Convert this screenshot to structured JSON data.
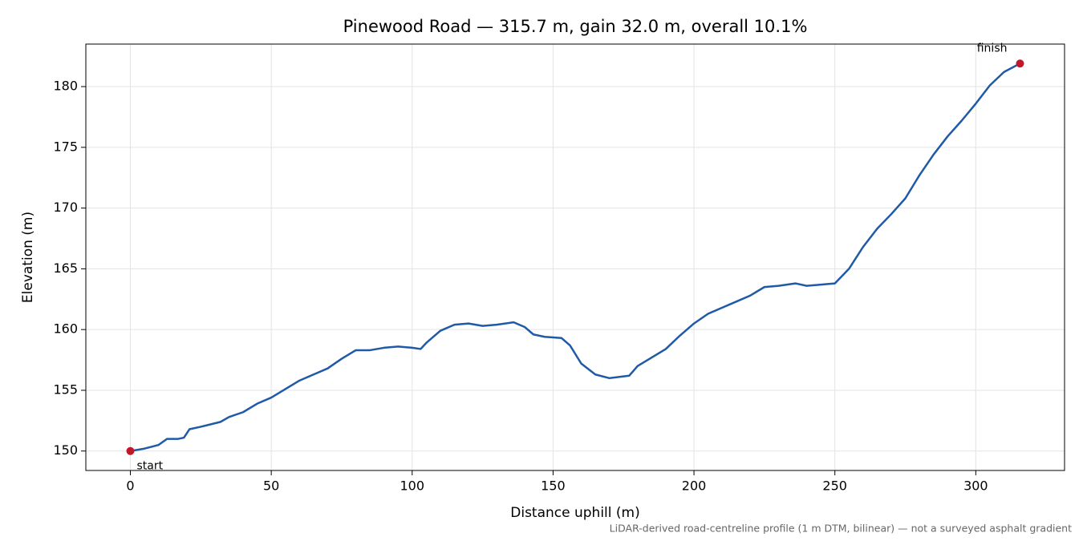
{
  "chart_data": {
    "type": "line",
    "title": "Pinewood Road — 315.7 m, gain 32.0 m, overall 10.1%",
    "x_label": "Distance uphill (m)",
    "y_label": "Elevation (m)",
    "note": "LiDAR-derived road-centreline profile (1 m DTM, bilinear) — not a surveyed asphalt gradient",
    "color": "#1f5aa8",
    "x": [
      0,
      5,
      10,
      13,
      17,
      19,
      21,
      25,
      32,
      35,
      40,
      45,
      50,
      55,
      60,
      65,
      70,
      75,
      80,
      85,
      90,
      95,
      100,
      103,
      105,
      110,
      115,
      120,
      125,
      130,
      136,
      140,
      143,
      147,
      153,
      156,
      160,
      165,
      170,
      177,
      180,
      185,
      190,
      195,
      200,
      205,
      210,
      215,
      220,
      225,
      230,
      236,
      240,
      245,
      250,
      255,
      260,
      265,
      270,
      275,
      280,
      285,
      290,
      295,
      300,
      305,
      310,
      315.7
    ],
    "values": [
      150.0,
      150.2,
      150.5,
      151.0,
      151.0,
      151.1,
      151.8,
      152.0,
      152.4,
      152.8,
      153.2,
      153.9,
      154.4,
      155.1,
      155.8,
      156.3,
      156.8,
      157.6,
      158.3,
      158.3,
      158.5,
      158.6,
      158.5,
      158.4,
      158.9,
      159.9,
      160.4,
      160.5,
      160.3,
      160.4,
      160.6,
      160.2,
      159.6,
      159.4,
      159.3,
      158.7,
      157.2,
      156.3,
      156.0,
      156.2,
      157.0,
      157.7,
      158.4,
      159.5,
      160.5,
      161.3,
      161.8,
      162.3,
      162.8,
      163.5,
      163.6,
      163.8,
      163.6,
      163.7,
      163.8,
      165.0,
      166.8,
      168.3,
      169.5,
      170.8,
      172.7,
      174.4,
      175.9,
      177.2,
      178.6,
      180.1,
      181.2,
      181.9
    ],
    "endpoints": {
      "x": [
        0,
        315.7
      ],
      "values": [
        150.0,
        181.9
      ],
      "labels": [
        "start",
        "finish"
      ],
      "color": "#c0182a"
    },
    "xlim": [
      -15.8,
      331.5
    ],
    "ylim": [
      148.4,
      183.5
    ],
    "xticks": [
      0,
      50,
      100,
      150,
      200,
      250,
      300
    ],
    "yticks": [
      150,
      155,
      160,
      165,
      170,
      175,
      180
    ],
    "grid": true
  }
}
